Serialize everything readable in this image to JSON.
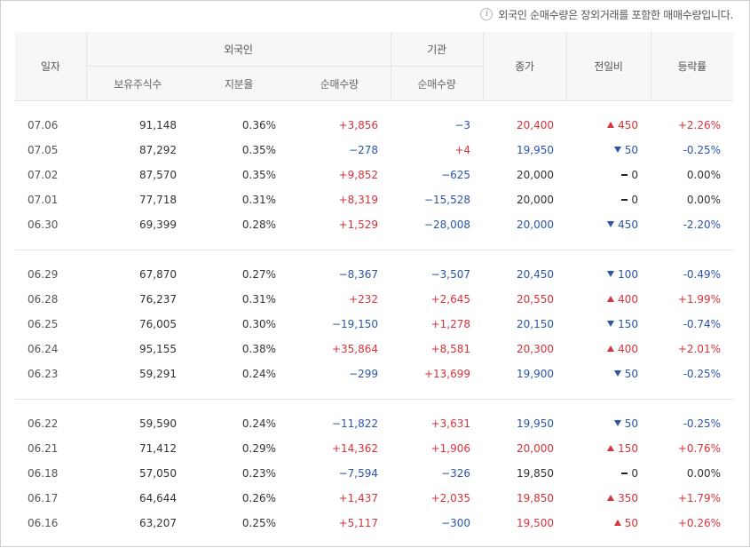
{
  "notice": {
    "icon": "info-icon",
    "text": "외국인 순매수량은 장외거래를 포함한 매매수량입니다."
  },
  "headers": {
    "date": "일자",
    "foreign": "외국인",
    "institution": "기관",
    "close": "종가",
    "change": "전일비",
    "rate": "등락률",
    "holdings": "보유주식수",
    "ratio": "지분율",
    "foreign_net": "순매수량",
    "inst_net": "순매수량"
  },
  "colors": {
    "up": "#d6333b",
    "down": "#2c55a8"
  },
  "groups": [
    [
      {
        "date": "07.06",
        "holdings": "91,148",
        "ratio": "0.36%",
        "fnet": "+3,856",
        "fdir": "up",
        "inet": "−3",
        "idir": "down",
        "close": "20,400",
        "cdir": "up",
        "change": "450",
        "chdir": "up",
        "rate": "+2.26%",
        "rdir": "up"
      },
      {
        "date": "07.05",
        "holdings": "87,292",
        "ratio": "0.35%",
        "fnet": "−278",
        "fdir": "down",
        "inet": "+4",
        "idir": "up",
        "close": "19,950",
        "cdir": "down",
        "change": "50",
        "chdir": "down",
        "rate": "-0.25%",
        "rdir": "down"
      },
      {
        "date": "07.02",
        "holdings": "87,570",
        "ratio": "0.35%",
        "fnet": "+9,852",
        "fdir": "up",
        "inet": "−625",
        "idir": "down",
        "close": "20,000",
        "cdir": "same",
        "change": "0",
        "chdir": "flat",
        "rate": "0.00%",
        "rdir": "same"
      },
      {
        "date": "07.01",
        "holdings": "77,718",
        "ratio": "0.31%",
        "fnet": "+8,319",
        "fdir": "up",
        "inet": "−15,528",
        "idir": "down",
        "close": "20,000",
        "cdir": "same",
        "change": "0",
        "chdir": "flat",
        "rate": "0.00%",
        "rdir": "same"
      },
      {
        "date": "06.30",
        "holdings": "69,399",
        "ratio": "0.28%",
        "fnet": "+1,529",
        "fdir": "up",
        "inet": "−28,008",
        "idir": "down",
        "close": "20,000",
        "cdir": "down",
        "change": "450",
        "chdir": "down",
        "rate": "-2.20%",
        "rdir": "down"
      }
    ],
    [
      {
        "date": "06.29",
        "holdings": "67,870",
        "ratio": "0.27%",
        "fnet": "−8,367",
        "fdir": "down",
        "inet": "−3,507",
        "idir": "down",
        "close": "20,450",
        "cdir": "down",
        "change": "100",
        "chdir": "down",
        "rate": "-0.49%",
        "rdir": "down"
      },
      {
        "date": "06.28",
        "holdings": "76,237",
        "ratio": "0.31%",
        "fnet": "+232",
        "fdir": "up",
        "inet": "+2,645",
        "idir": "up",
        "close": "20,550",
        "cdir": "up",
        "change": "400",
        "chdir": "up",
        "rate": "+1.99%",
        "rdir": "up"
      },
      {
        "date": "06.25",
        "holdings": "76,005",
        "ratio": "0.30%",
        "fnet": "−19,150",
        "fdir": "down",
        "inet": "+1,278",
        "idir": "up",
        "close": "20,150",
        "cdir": "down",
        "change": "150",
        "chdir": "down",
        "rate": "-0.74%",
        "rdir": "down"
      },
      {
        "date": "06.24",
        "holdings": "95,155",
        "ratio": "0.38%",
        "fnet": "+35,864",
        "fdir": "up",
        "inet": "+8,581",
        "idir": "up",
        "close": "20,300",
        "cdir": "up",
        "change": "400",
        "chdir": "up",
        "rate": "+2.01%",
        "rdir": "up"
      },
      {
        "date": "06.23",
        "holdings": "59,291",
        "ratio": "0.24%",
        "fnet": "−299",
        "fdir": "down",
        "inet": "+13,699",
        "idir": "up",
        "close": "19,900",
        "cdir": "down",
        "change": "50",
        "chdir": "down",
        "rate": "-0.25%",
        "rdir": "down"
      }
    ],
    [
      {
        "date": "06.22",
        "holdings": "59,590",
        "ratio": "0.24%",
        "fnet": "−11,822",
        "fdir": "down",
        "inet": "+3,631",
        "idir": "up",
        "close": "19,950",
        "cdir": "down",
        "change": "50",
        "chdir": "down",
        "rate": "-0.25%",
        "rdir": "down"
      },
      {
        "date": "06.21",
        "holdings": "71,412",
        "ratio": "0.29%",
        "fnet": "+14,362",
        "fdir": "up",
        "inet": "+1,906",
        "idir": "up",
        "close": "20,000",
        "cdir": "up",
        "change": "150",
        "chdir": "up",
        "rate": "+0.76%",
        "rdir": "up"
      },
      {
        "date": "06.18",
        "holdings": "57,050",
        "ratio": "0.23%",
        "fnet": "−7,594",
        "fdir": "down",
        "inet": "−326",
        "idir": "down",
        "close": "19,850",
        "cdir": "same",
        "change": "0",
        "chdir": "flat",
        "rate": "0.00%",
        "rdir": "same"
      },
      {
        "date": "06.17",
        "holdings": "64,644",
        "ratio": "0.26%",
        "fnet": "+1,437",
        "fdir": "up",
        "inet": "+2,035",
        "idir": "up",
        "close": "19,850",
        "cdir": "up",
        "change": "350",
        "chdir": "up",
        "rate": "+1.79%",
        "rdir": "up"
      },
      {
        "date": "06.16",
        "holdings": "63,207",
        "ratio": "0.25%",
        "fnet": "+5,117",
        "fdir": "up",
        "inet": "−300",
        "idir": "down",
        "close": "19,500",
        "cdir": "up",
        "change": "50",
        "chdir": "up",
        "rate": "+0.26%",
        "rdir": "up"
      }
    ]
  ]
}
